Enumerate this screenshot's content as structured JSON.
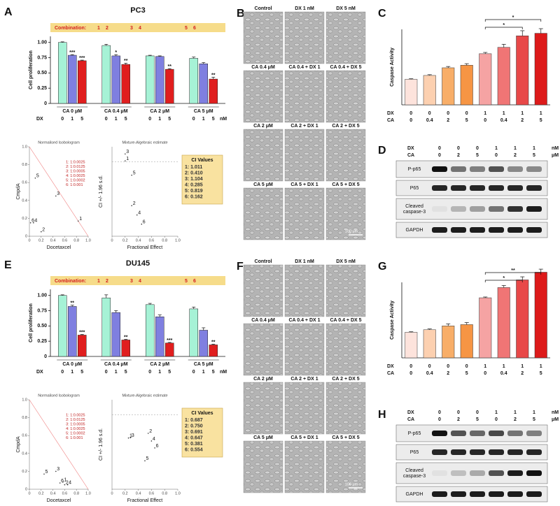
{
  "chart_data": [
    {
      "type": "grouped_bar",
      "panel": "A",
      "title": "PC3",
      "ylabel": "Cell proliferation",
      "banner": "Combination:",
      "banner_numbers": [
        "1",
        "2",
        "3",
        "4",
        "5",
        "6"
      ],
      "categories": [
        "CA 0 μM",
        "CA 0.4 μM",
        "CA 2 μM",
        "CA 5 μM"
      ],
      "xrow_label": "DX",
      "xrow_unit": "nM",
      "series": [
        {
          "name": "0",
          "color": "#a6f2d6",
          "values": [
            1.0,
            0.95,
            0.78,
            0.74
          ],
          "errors": [
            0.01,
            0.02,
            0.01,
            0.02
          ],
          "annotations": [
            null,
            null,
            null,
            null
          ]
        },
        {
          "name": "1",
          "color": "#7f7fe0",
          "values": [
            0.79,
            0.78,
            0.77,
            0.65
          ],
          "errors": [
            0.01,
            0.02,
            0.01,
            0.02
          ],
          "annotations": [
            "***",
            "*",
            null,
            null
          ]
        },
        {
          "name": "5",
          "color": "#e01e1e",
          "values": [
            0.7,
            0.64,
            0.56,
            0.4
          ],
          "errors": [
            0.01,
            0.02,
            0.01,
            0.03
          ],
          "annotations": [
            "***",
            "**",
            "**",
            "**"
          ]
        }
      ],
      "ylim": [
        0,
        1.1
      ],
      "yticks": [
        0,
        0.25,
        {
          "value": 0.5,
          "label": "0.50"
        },
        0.75,
        {
          "value": 1,
          "label": "1.00"
        }
      ]
    },
    {
      "type": "isobologram",
      "title": "Normalised Isobologram",
      "xlabel": "Docetaxcel",
      "ylabel": "CmpdA",
      "x": [
        0.83,
        0.2,
        0.45,
        0.07,
        0.1,
        0.02
      ],
      "y": [
        0.17,
        0.05,
        0.45,
        0.15,
        0.65,
        0.15
      ],
      "point_labels": [
        "1",
        "2",
        "3",
        "4",
        "5",
        "6"
      ],
      "legend_entries": [
        "1: 1:0.0025",
        "2: 1:0.0125",
        "3: 1:0.0005",
        "4: 1:0.0025",
        "5: 1:0.0002",
        "6: 1:0.001"
      ],
      "xlim": [
        0,
        1
      ],
      "ylim": [
        0,
        1
      ],
      "xticks": [
        0,
        0.2,
        0.4,
        0.6,
        0.8,
        {
          "value": 1,
          "label": "1.0"
        }
      ],
      "yticks": [
        0,
        0.2,
        0.4,
        0.6,
        0.8,
        {
          "value": 1,
          "label": "1.0"
        }
      ]
    },
    {
      "type": "scatter",
      "title": "Mixture-Algebraic estimate",
      "xlabel": "Fractional Effect",
      "ylabel": "CI +/- 1.96 s.d.",
      "x": [
        0.2,
        0.3,
        0.2,
        0.38,
        0.3,
        0.45
      ],
      "y": [
        1.011,
        0.41,
        1.104,
        0.285,
        0.819,
        0.162
      ],
      "value_labels": [
        "1: 1.011",
        "2: 0.410",
        "3: 1.104",
        "4: 0.285",
        "5: 0.819",
        "6: 0.162"
      ],
      "point_labels": [
        "1",
        "2",
        "3",
        "4",
        "5",
        "6"
      ],
      "box_title": "CI Values",
      "ref_y": 1,
      "xlim": [
        0,
        1
      ],
      "ylim": [
        0,
        1.2
      ],
      "xticks": [
        0,
        0.2,
        0.4,
        0.6,
        0.8,
        {
          "value": 1,
          "label": "1.0"
        }
      ]
    },
    {
      "type": "bar",
      "panel": "C",
      "ylabel": "Caspase Activity",
      "dx_label": "DX",
      "dx": [
        "0",
        "0",
        "0",
        "0",
        "1",
        "1",
        "1",
        "1"
      ],
      "ca_label": "CA",
      "ca": [
        "0",
        "0.4",
        "2",
        "5",
        "0",
        "0.4",
        "2",
        "5"
      ],
      "values": [
        1.0,
        1.15,
        1.45,
        1.55,
        2.0,
        2.25,
        2.7,
        2.8
      ],
      "errors": [
        0.02,
        0.03,
        0.05,
        0.06,
        0.05,
        0.12,
        0.2,
        0.18
      ],
      "colors": [
        "#fde3dc",
        "#fcd0b0",
        "#f8ae68",
        "#f69544",
        "#f5a3a3",
        "#f07575",
        "#e84848",
        "#dd1a1a"
      ],
      "brackets": [
        {
          "from": 4,
          "to": 7,
          "label": "*"
        },
        {
          "from": 4,
          "to": 6,
          "label": "*"
        }
      ],
      "ylim": [
        0,
        3.5
      ]
    },
    {
      "type": "grouped_bar",
      "panel": "E",
      "title": "DU145",
      "ylabel": "Cell proliferation",
      "banner": "Combination:",
      "banner_numbers": [
        "1",
        "2",
        "3",
        "4",
        "5",
        "6"
      ],
      "categories": [
        "CA 0 μM",
        "CA 0.4 μM",
        "CA 2 μM",
        "CA 5 μM"
      ],
      "xrow_label": "DX",
      "xrow_unit": "nM",
      "series": [
        {
          "name": "0",
          "color": "#a6f2d6",
          "values": [
            1.0,
            0.96,
            0.85,
            0.78
          ],
          "errors": [
            0.01,
            0.05,
            0.02,
            0.03
          ],
          "annotations": [
            null,
            null,
            null,
            null
          ]
        },
        {
          "name": "1",
          "color": "#7f7fe0",
          "values": [
            0.82,
            0.72,
            0.65,
            0.43
          ],
          "errors": [
            0.02,
            0.03,
            0.03,
            0.04
          ],
          "annotations": [
            "**",
            null,
            null,
            null
          ]
        },
        {
          "name": "5",
          "color": "#e01e1e",
          "values": [
            0.35,
            0.27,
            0.22,
            0.19
          ],
          "errors": [
            0.01,
            0.01,
            0.01,
            0.01
          ],
          "annotations": [
            "***",
            "**",
            "***",
            "**"
          ]
        }
      ],
      "ylim": [
        0,
        1.1
      ],
      "yticks": [
        0,
        0.25,
        {
          "value": 0.5,
          "label": "0.50"
        },
        0.75,
        {
          "value": 1,
          "label": "1.00"
        }
      ]
    },
    {
      "type": "isobologram",
      "title": "Normalised Isobologram",
      "xlabel": "Docetaxcel",
      "ylabel": "CmpdA",
      "x": [
        0.57,
        0.6,
        0.45,
        0.65,
        0.25,
        0.52
      ],
      "y": [
        0.08,
        0.05,
        0.2,
        0.05,
        0.17,
        0.07
      ],
      "point_labels": [
        "1",
        "2",
        "3",
        "4",
        "5",
        "6"
      ],
      "legend_entries": [
        "1: 1:0.0025",
        "2: 1:0.0125",
        "3: 1:0.0005",
        "4: 1:0.0025",
        "5: 1:0.0002",
        "6: 1:0.001"
      ],
      "xlim": [
        0,
        1
      ],
      "ylim": [
        0,
        1
      ],
      "xticks": [
        0,
        0.2,
        0.4,
        0.6,
        0.8,
        {
          "value": 1,
          "label": "1.0"
        }
      ],
      "yticks": [
        0,
        0.2,
        0.4,
        0.6,
        0.8,
        {
          "value": 1,
          "label": "1.0"
        }
      ]
    },
    {
      "type": "scatter",
      "title": "Mixture-Algebraic estimate",
      "xlabel": "Fractional Effect",
      "ylabel": "CI +/- 1.96 s.d.",
      "x": [
        0.25,
        0.55,
        0.28,
        0.6,
        0.5,
        0.65
      ],
      "y": [
        0.687,
        0.75,
        0.691,
        0.647,
        0.381,
        0.554
      ],
      "value_labels": [
        "1: 0.687",
        "2: 0.750",
        "3: 0.691",
        "4: 0.647",
        "5: 0.381",
        "6: 0.554"
      ],
      "point_labels": [
        "1",
        "2",
        "3",
        "4",
        "5",
        "6"
      ],
      "box_title": "CI Values",
      "ref_y": 1,
      "xlim": [
        0,
        1
      ],
      "ylim": [
        0,
        1.2
      ],
      "xticks": [
        0,
        0.2,
        0.4,
        0.6,
        0.8,
        {
          "value": 1,
          "label": "1.0"
        }
      ]
    },
    {
      "type": "bar",
      "panel": "G",
      "ylabel": "Caspase Activity",
      "dx_label": "DX",
      "dx": [
        "0",
        "0",
        "0",
        "0",
        "1",
        "1",
        "1",
        "1"
      ],
      "ca_label": "CA",
      "ca": [
        "0",
        "0.4",
        "2",
        "5",
        "0",
        "0.4",
        "2",
        "5"
      ],
      "values": [
        1.0,
        1.1,
        1.25,
        1.3,
        2.35,
        2.75,
        3.05,
        3.35
      ],
      "errors": [
        0.02,
        0.03,
        0.08,
        0.08,
        0.03,
        0.08,
        0.12,
        0.12
      ],
      "colors": [
        "#fde3dc",
        "#fcd0b0",
        "#f8ae68",
        "#f69544",
        "#f5a3a3",
        "#f07575",
        "#e84848",
        "#dd1a1a"
      ],
      "brackets": [
        {
          "from": 4,
          "to": 7,
          "label": "**"
        },
        {
          "from": 4,
          "to": 6,
          "label": "*"
        }
      ],
      "ylim": [
        0,
        3.5
      ]
    }
  ],
  "micrographs": [
    {
      "panel": "B",
      "labels": [
        "Control",
        "DX 1 nM",
        "DX 5 nM",
        "CA 0.4 μM",
        "CA 0.4 + DX 1",
        "CA 0.4 + DX 5",
        "CA 2 μM",
        "CA 2 + DX 1",
        "CA 2 + DX 5",
        "CA 5 μM",
        "CA 5 + DX 1",
        "CA 5 + DX 5"
      ],
      "scale_bar": "100 μm"
    },
    {
      "panel": "F",
      "labels": [
        "Control",
        "DX 1 nM",
        "DX 5 nM",
        "CA 0.4 μM",
        "CA 0.4 + DX 1",
        "CA 0.4 + DX 5",
        "CA 2 μM",
        "CA 2 + DX 1",
        "CA 2 + DX 5",
        "CA 5 μM",
        "CA 5 + DX 1",
        "CA 5 + DX 5"
      ],
      "scale_bar": "100 μm"
    }
  ],
  "blots": [
    {
      "panel": "D",
      "dx_label": "DX",
      "dx": [
        "0",
        "0",
        "0",
        "1",
        "1",
        "1"
      ],
      "dx_unit": "nM",
      "ca_label": "CA",
      "ca": [
        "0",
        "2",
        "5",
        "0",
        "2",
        "5"
      ],
      "ca_unit": "μM",
      "rows": [
        [
          "P-p65"
        ],
        [
          "P65"
        ],
        [
          "Cleaved",
          "caspase-3"
        ],
        [
          "GAPDH"
        ]
      ]
    },
    {
      "panel": "H",
      "dx_label": "DX",
      "dx": [
        "0",
        "0",
        "0",
        "1",
        "1",
        "1"
      ],
      "dx_unit": "nM",
      "ca_label": "CA",
      "ca": [
        "0",
        "2",
        "5",
        "0",
        "2",
        "5"
      ],
      "ca_unit": "μM",
      "rows": [
        [
          "P-p65"
        ],
        [
          "P65"
        ],
        [
          "Cleaved",
          "caspase-3"
        ],
        [
          "GAPDH"
        ]
      ]
    }
  ]
}
